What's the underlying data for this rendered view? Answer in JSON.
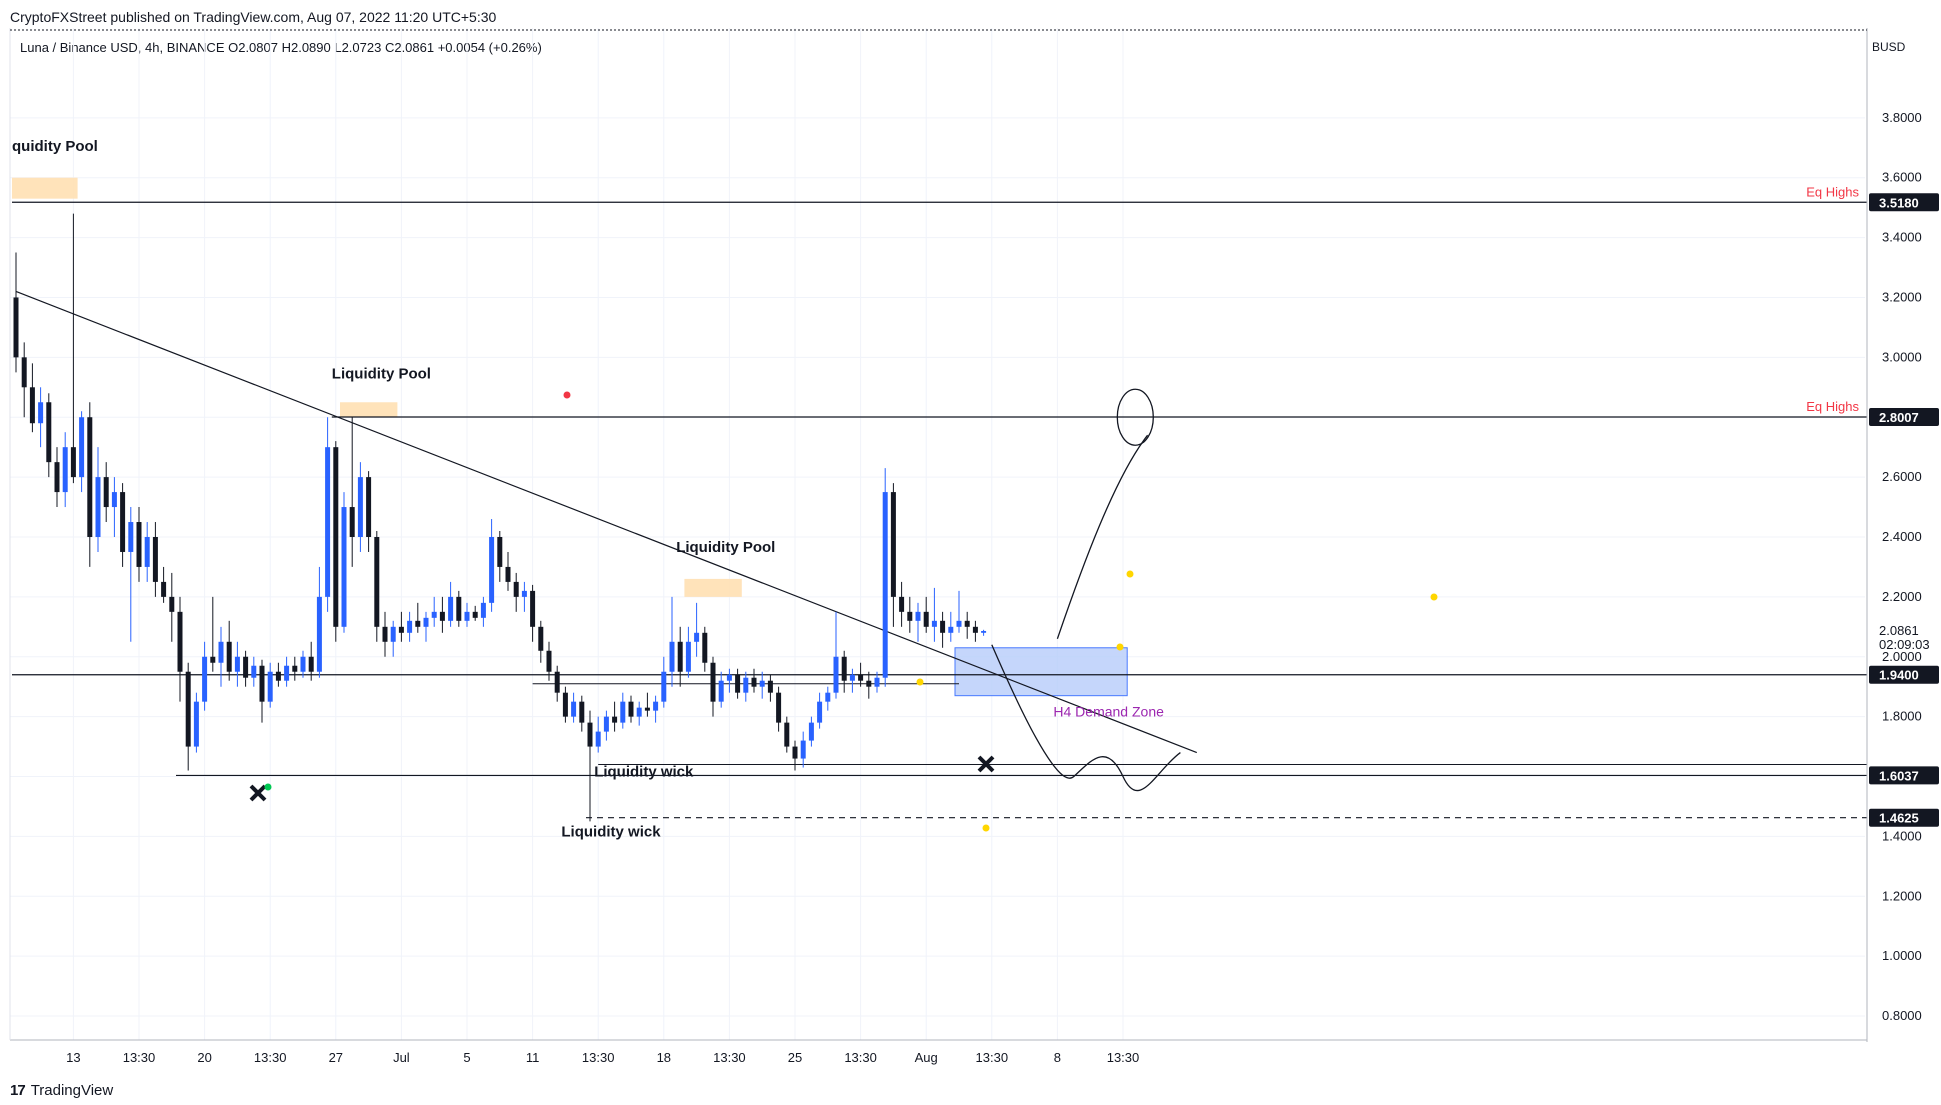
{
  "header": {
    "published": "CryptoFXStreet published on TradingView.com, Aug 07, 2022 11:20 UTC+5:30",
    "symbol": "Luna / Binance USD, 4h, BINANCE  O2.0807  H2.0890  L2.0723  C2.0861  +0.0054 (+0.26%)",
    "currency": "BUSD"
  },
  "footer": {
    "logo_text": "TradingView",
    "logo_mark": "17"
  },
  "colors": {
    "up": "#2962ff",
    "down": "#131722",
    "pool": "#ffe0b2",
    "demand": "#bbd0fb",
    "eq_highs": "#f23645",
    "demand_label": "#9c27b0"
  },
  "chart_data": {
    "type": "candlestick",
    "ylim": [
      0.72,
      4.1
    ],
    "y_ticks": [
      "3.8000",
      "3.6000",
      "3.4000",
      "3.2000",
      "3.0000",
      "2.8000",
      "2.6000",
      "2.4000",
      "2.2000",
      "2.0000",
      "1.8000",
      "1.6000",
      "1.4000",
      "1.2000",
      "1.0000",
      "0.8000"
    ],
    "y_tick_values": [
      3.8,
      3.6,
      3.4,
      3.2,
      3.0,
      2.8,
      2.6,
      2.4,
      2.2,
      2.0,
      1.8,
      1.6,
      1.4,
      1.2,
      1.0,
      0.8
    ],
    "x_ticks": [
      "13",
      "13:30",
      "20",
      "13:30",
      "27",
      "Jul",
      "5",
      "11",
      "13:30",
      "18",
      "13:30",
      "25",
      "13:30",
      "Aug",
      "13:30",
      "8",
      "13:30"
    ],
    "x_tick_index": [
      40,
      48,
      56,
      64,
      72,
      80,
      88,
      96,
      104,
      112,
      120,
      128,
      136,
      144,
      152,
      160,
      168
    ],
    "price_labels": [
      {
        "text": "3.5180",
        "value": 3.518
      },
      {
        "text": "2.8007",
        "value": 2.8007
      },
      {
        "text": "2.0861",
        "value": 2.0861
      },
      {
        "text": "02:09:03",
        "value": 2.04
      },
      {
        "text": "1.9400",
        "value": 1.94
      },
      {
        "text": "1.6037",
        "value": 1.6037
      },
      {
        "text": "1.4625",
        "value": 1.4625
      }
    ],
    "levels": [
      {
        "value": 3.518,
        "label": "Eq Highs",
        "from_index": 33,
        "style": "solid"
      },
      {
        "value": 2.8007,
        "label": "Eq Highs",
        "from_index": 72,
        "style": "solid"
      },
      {
        "value": 1.94,
        "from_index": 33,
        "style": "solid"
      },
      {
        "value": 1.6037,
        "from_index": 53,
        "style": "solid"
      },
      {
        "value": 1.4625,
        "from_index": 103,
        "style": "dashed"
      }
    ],
    "zones": [
      {
        "label": "Liquidity Pool",
        "from_index": 33,
        "to_index": 41,
        "low": 3.53,
        "high": 3.6
      },
      {
        "label": "Liquidity Pool",
        "from_index": 73,
        "to_index": 80,
        "low": 2.8,
        "high": 2.85
      },
      {
        "label": "Liquidity Pool",
        "from_index": 115,
        "to_index": 122,
        "low": 2.2,
        "high": 2.26
      },
      {
        "label": "H4 Demand Zone",
        "from_index": 148,
        "to_index": 169,
        "low": 1.87,
        "high": 2.03
      }
    ],
    "annotations": [
      {
        "text": "quidity Pool",
        "index": 33,
        "value": 3.69
      },
      {
        "text": "Liquidity Pool",
        "index": 72,
        "value": 2.93
      },
      {
        "text": "Liquidity Pool",
        "index": 114,
        "value": 2.35
      },
      {
        "text": "Liquidity wick",
        "index": 104,
        "value": 1.6
      },
      {
        "text": "Liquidity wick",
        "index": 100,
        "value": 1.4
      },
      {
        "text": "H4 Demand Zone",
        "index": 160,
        "value": 1.8
      }
    ],
    "trendline": {
      "from": [
        33,
        3.22
      ],
      "to": [
        177,
        1.68
      ]
    },
    "candles": [
      {
        "o": 3.2,
        "h": 3.35,
        "l": 2.95,
        "c": 3.0
      },
      {
        "o": 3.0,
        "h": 3.05,
        "l": 2.8,
        "c": 2.9
      },
      {
        "o": 2.9,
        "h": 2.98,
        "l": 2.75,
        "c": 2.78
      },
      {
        "o": 2.78,
        "h": 2.9,
        "l": 2.7,
        "c": 2.85
      },
      {
        "o": 2.85,
        "h": 2.88,
        "l": 2.6,
        "c": 2.65
      },
      {
        "o": 2.65,
        "h": 2.7,
        "l": 2.5,
        "c": 2.55
      },
      {
        "o": 2.55,
        "h": 2.75,
        "l": 2.5,
        "c": 2.7
      },
      {
        "o": 2.7,
        "h": 3.48,
        "l": 2.58,
        "c": 2.6
      },
      {
        "o": 2.6,
        "h": 2.82,
        "l": 2.55,
        "c": 2.8
      },
      {
        "o": 2.8,
        "h": 2.85,
        "l": 2.3,
        "c": 2.4
      },
      {
        "o": 2.4,
        "h": 2.7,
        "l": 2.35,
        "c": 2.6
      },
      {
        "o": 2.6,
        "h": 2.65,
        "l": 2.45,
        "c": 2.5
      },
      {
        "o": 2.5,
        "h": 2.6,
        "l": 2.4,
        "c": 2.55
      },
      {
        "o": 2.55,
        "h": 2.58,
        "l": 2.3,
        "c": 2.35
      },
      {
        "o": 2.35,
        "h": 2.5,
        "l": 2.05,
        "c": 2.45
      },
      {
        "o": 2.45,
        "h": 2.5,
        "l": 2.25,
        "c": 2.3
      },
      {
        "o": 2.3,
        "h": 2.45,
        "l": 2.25,
        "c": 2.4
      },
      {
        "o": 2.4,
        "h": 2.45,
        "l": 2.2,
        "c": 2.25
      },
      {
        "o": 2.25,
        "h": 2.3,
        "l": 2.18,
        "c": 2.2
      },
      {
        "o": 2.2,
        "h": 2.28,
        "l": 2.05,
        "c": 2.15
      },
      {
        "o": 2.15,
        "h": 2.2,
        "l": 1.85,
        "c": 1.95
      },
      {
        "o": 1.95,
        "h": 1.98,
        "l": 1.62,
        "c": 1.7
      },
      {
        "o": 1.7,
        "h": 1.88,
        "l": 1.68,
        "c": 1.85
      },
      {
        "o": 1.85,
        "h": 2.05,
        "l": 1.82,
        "c": 2.0
      },
      {
        "o": 2.0,
        "h": 2.2,
        "l": 1.95,
        "c": 1.98
      },
      {
        "o": 1.98,
        "h": 2.1,
        "l": 1.9,
        "c": 2.05
      },
      {
        "o": 2.05,
        "h": 2.12,
        "l": 1.92,
        "c": 1.95
      },
      {
        "o": 1.95,
        "h": 2.05,
        "l": 1.9,
        "c": 2.0
      },
      {
        "o": 2.0,
        "h": 2.02,
        "l": 1.9,
        "c": 1.93
      },
      {
        "o": 1.93,
        "h": 2.0,
        "l": 1.9,
        "c": 1.97
      },
      {
        "o": 1.97,
        "h": 1.99,
        "l": 1.78,
        "c": 1.85
      },
      {
        "o": 1.85,
        "h": 1.98,
        "l": 1.83,
        "c": 1.95
      },
      {
        "o": 1.95,
        "h": 1.98,
        "l": 1.9,
        "c": 1.92
      },
      {
        "o": 1.92,
        "h": 2.0,
        "l": 1.9,
        "c": 1.97
      },
      {
        "o": 1.97,
        "h": 2.0,
        "l": 1.92,
        "c": 1.95
      },
      {
        "o": 1.95,
        "h": 2.02,
        "l": 1.93,
        "c": 2.0
      },
      {
        "o": 2.0,
        "h": 2.05,
        "l": 1.92,
        "c": 1.95
      },
      {
        "o": 1.95,
        "h": 2.3,
        "l": 1.93,
        "c": 2.2
      },
      {
        "o": 2.2,
        "h": 2.8,
        "l": 2.15,
        "c": 2.7
      },
      {
        "o": 2.7,
        "h": 2.72,
        "l": 2.05,
        "c": 2.1
      },
      {
        "o": 2.1,
        "h": 2.55,
        "l": 2.08,
        "c": 2.5
      },
      {
        "o": 2.5,
        "h": 2.8,
        "l": 2.3,
        "c": 2.4
      },
      {
        "o": 2.4,
        "h": 2.65,
        "l": 2.35,
        "c": 2.6
      },
      {
        "o": 2.6,
        "h": 2.62,
        "l": 2.35,
        "c": 2.4
      },
      {
        "o": 2.4,
        "h": 2.42,
        "l": 2.05,
        "c": 2.1
      },
      {
        "o": 2.1,
        "h": 2.15,
        "l": 2.0,
        "c": 2.05
      },
      {
        "o": 2.05,
        "h": 2.12,
        "l": 2.0,
        "c": 2.1
      },
      {
        "o": 2.1,
        "h": 2.15,
        "l": 2.05,
        "c": 2.08
      },
      {
        "o": 2.08,
        "h": 2.15,
        "l": 2.05,
        "c": 2.12
      },
      {
        "o": 2.12,
        "h": 2.18,
        "l": 2.08,
        "c": 2.1
      },
      {
        "o": 2.1,
        "h": 2.15,
        "l": 2.05,
        "c": 2.13
      },
      {
        "o": 2.13,
        "h": 2.2,
        "l": 2.1,
        "c": 2.15
      },
      {
        "o": 2.15,
        "h": 2.2,
        "l": 2.08,
        "c": 2.12
      },
      {
        "o": 2.12,
        "h": 2.25,
        "l": 2.1,
        "c": 2.2
      },
      {
        "o": 2.2,
        "h": 2.22,
        "l": 2.1,
        "c": 2.12
      },
      {
        "o": 2.12,
        "h": 2.18,
        "l": 2.1,
        "c": 2.15
      },
      {
        "o": 2.15,
        "h": 2.17,
        "l": 2.12,
        "c": 2.13
      },
      {
        "o": 2.13,
        "h": 2.2,
        "l": 2.1,
        "c": 2.18
      },
      {
        "o": 2.18,
        "h": 2.46,
        "l": 2.15,
        "c": 2.4
      },
      {
        "o": 2.4,
        "h": 2.42,
        "l": 2.25,
        "c": 2.3
      },
      {
        "o": 2.3,
        "h": 2.35,
        "l": 2.22,
        "c": 2.25
      },
      {
        "o": 2.25,
        "h": 2.28,
        "l": 2.15,
        "c": 2.2
      },
      {
        "o": 2.2,
        "h": 2.25,
        "l": 2.15,
        "c": 2.22
      },
      {
        "o": 2.22,
        "h": 2.24,
        "l": 2.05,
        "c": 2.1
      },
      {
        "o": 2.1,
        "h": 2.12,
        "l": 1.98,
        "c": 2.02
      },
      {
        "o": 2.02,
        "h": 2.05,
        "l": 1.92,
        "c": 1.95
      },
      {
        "o": 1.95,
        "h": 1.97,
        "l": 1.85,
        "c": 1.88
      },
      {
        "o": 1.88,
        "h": 1.9,
        "l": 1.78,
        "c": 1.8
      },
      {
        "o": 1.8,
        "h": 1.88,
        "l": 1.78,
        "c": 1.85
      },
      {
        "o": 1.85,
        "h": 1.87,
        "l": 1.75,
        "c": 1.78
      },
      {
        "o": 1.78,
        "h": 1.82,
        "l": 1.45,
        "c": 1.7
      },
      {
        "o": 1.7,
        "h": 1.8,
        "l": 1.68,
        "c": 1.75
      },
      {
        "o": 1.75,
        "h": 1.82,
        "l": 1.72,
        "c": 1.8
      },
      {
        "o": 1.8,
        "h": 1.85,
        "l": 1.75,
        "c": 1.78
      },
      {
        "o": 1.78,
        "h": 1.88,
        "l": 1.76,
        "c": 1.85
      },
      {
        "o": 1.85,
        "h": 1.87,
        "l": 1.78,
        "c": 1.8
      },
      {
        "o": 1.8,
        "h": 1.85,
        "l": 1.77,
        "c": 1.83
      },
      {
        "o": 1.83,
        "h": 1.88,
        "l": 1.8,
        "c": 1.82
      },
      {
        "o": 1.82,
        "h": 1.87,
        "l": 1.78,
        "c": 1.85
      },
      {
        "o": 1.85,
        "h": 2.0,
        "l": 1.83,
        "c": 1.95
      },
      {
        "o": 1.95,
        "h": 2.2,
        "l": 1.9,
        "c": 2.05
      },
      {
        "o": 2.05,
        "h": 2.1,
        "l": 1.9,
        "c": 1.95
      },
      {
        "o": 1.95,
        "h": 2.1,
        "l": 1.93,
        "c": 2.05
      },
      {
        "o": 2.05,
        "h": 2.18,
        "l": 2.0,
        "c": 2.08
      },
      {
        "o": 2.08,
        "h": 2.1,
        "l": 1.95,
        "c": 1.98
      },
      {
        "o": 1.98,
        "h": 2.0,
        "l": 1.8,
        "c": 1.85
      },
      {
        "o": 1.85,
        "h": 1.95,
        "l": 1.83,
        "c": 1.92
      },
      {
        "o": 1.92,
        "h": 1.96,
        "l": 1.88,
        "c": 1.94
      },
      {
        "o": 1.94,
        "h": 1.96,
        "l": 1.86,
        "c": 1.88
      },
      {
        "o": 1.88,
        "h": 1.95,
        "l": 1.85,
        "c": 1.93
      },
      {
        "o": 1.93,
        "h": 1.96,
        "l": 1.88,
        "c": 1.9
      },
      {
        "o": 1.9,
        "h": 1.95,
        "l": 1.86,
        "c": 1.92
      },
      {
        "o": 1.92,
        "h": 1.94,
        "l": 1.85,
        "c": 1.88
      },
      {
        "o": 1.88,
        "h": 1.9,
        "l": 1.75,
        "c": 1.78
      },
      {
        "o": 1.78,
        "h": 1.8,
        "l": 1.68,
        "c": 1.7
      },
      {
        "o": 1.7,
        "h": 1.72,
        "l": 1.62,
        "c": 1.66
      },
      {
        "o": 1.66,
        "h": 1.75,
        "l": 1.63,
        "c": 1.72
      },
      {
        "o": 1.72,
        "h": 1.8,
        "l": 1.7,
        "c": 1.78
      },
      {
        "o": 1.78,
        "h": 1.88,
        "l": 1.76,
        "c": 1.85
      },
      {
        "o": 1.85,
        "h": 1.9,
        "l": 1.82,
        "c": 1.88
      },
      {
        "o": 1.88,
        "h": 2.15,
        "l": 1.86,
        "c": 2.0
      },
      {
        "o": 2.0,
        "h": 2.02,
        "l": 1.88,
        "c": 1.92
      },
      {
        "o": 1.92,
        "h": 1.96,
        "l": 1.88,
        "c": 1.94
      },
      {
        "o": 1.94,
        "h": 1.98,
        "l": 1.9,
        "c": 1.92
      },
      {
        "o": 1.92,
        "h": 1.95,
        "l": 1.86,
        "c": 1.9
      },
      {
        "o": 1.9,
        "h": 1.95,
        "l": 1.88,
        "c": 1.93
      },
      {
        "o": 1.93,
        "h": 2.63,
        "l": 1.9,
        "c": 2.55
      },
      {
        "o": 2.55,
        "h": 2.58,
        "l": 2.1,
        "c": 2.2
      },
      {
        "o": 2.2,
        "h": 2.25,
        "l": 2.1,
        "c": 2.15
      },
      {
        "o": 2.15,
        "h": 2.2,
        "l": 2.08,
        "c": 2.12
      },
      {
        "o": 2.12,
        "h": 2.18,
        "l": 2.05,
        "c": 2.15
      },
      {
        "o": 2.15,
        "h": 2.2,
        "l": 2.08,
        "c": 2.1
      },
      {
        "o": 2.1,
        "h": 2.23,
        "l": 2.05,
        "c": 2.12
      },
      {
        "o": 2.12,
        "h": 2.15,
        "l": 2.03,
        "c": 2.08
      },
      {
        "o": 2.08,
        "h": 2.15,
        "l": 2.05,
        "c": 2.1
      },
      {
        "o": 2.1,
        "h": 2.22,
        "l": 2.08,
        "c": 2.12
      },
      {
        "o": 2.12,
        "h": 2.15,
        "l": 2.06,
        "c": 2.1
      },
      {
        "o": 2.1,
        "h": 2.12,
        "l": 2.05,
        "c": 2.08
      },
      {
        "o": 2.08,
        "h": 2.09,
        "l": 2.07,
        "c": 2.0861
      }
    ]
  }
}
